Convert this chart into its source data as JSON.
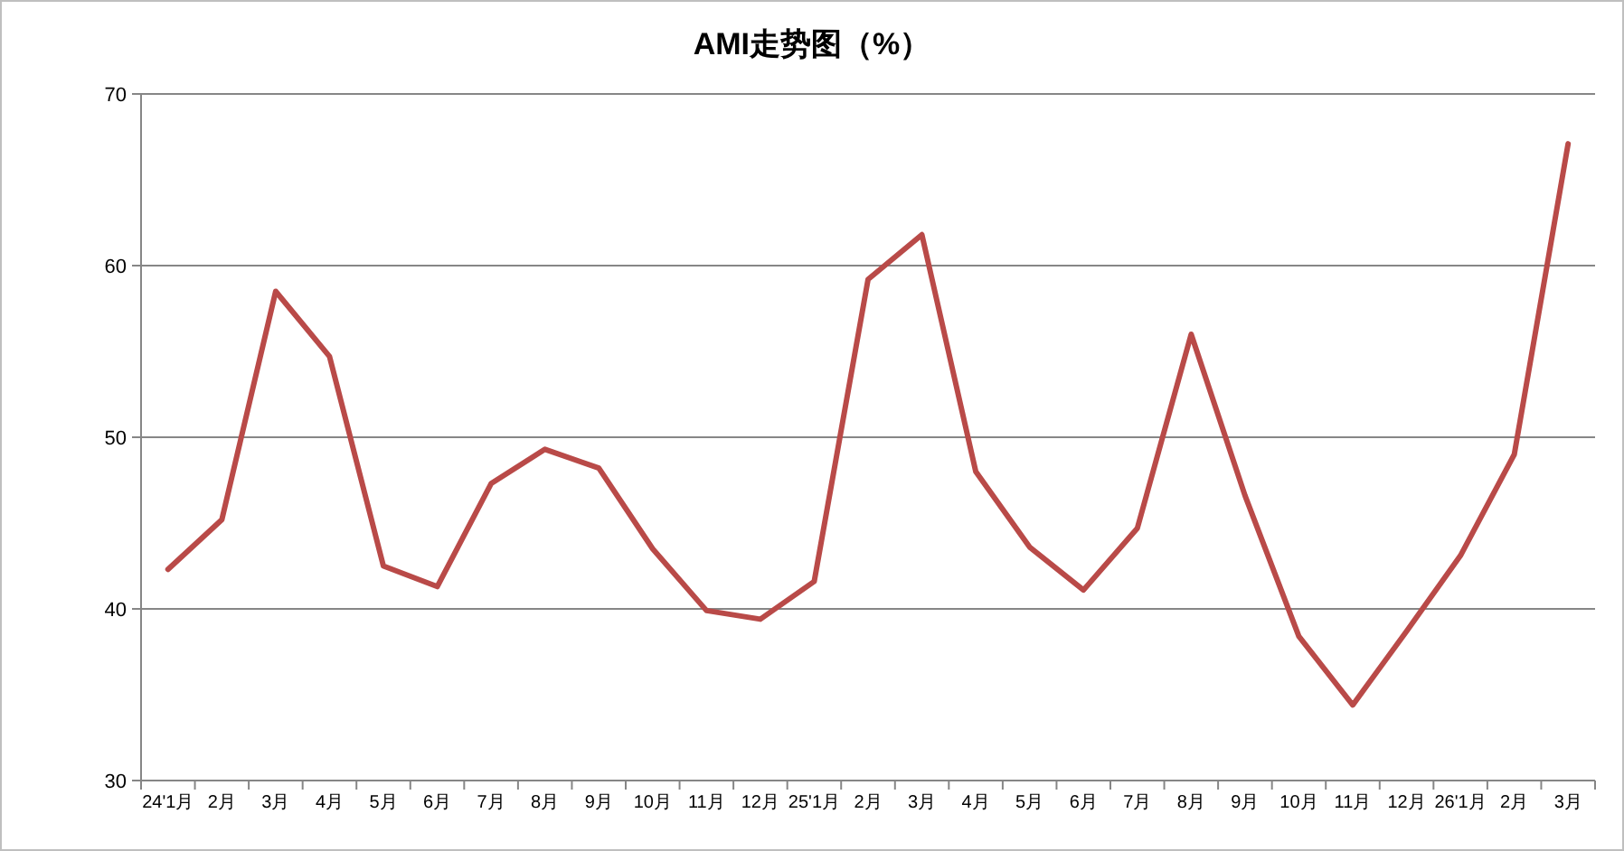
{
  "chart_data": {
    "type": "line",
    "title": "AMI走势图（%）",
    "categories": [
      "24'1月",
      "2月",
      "3月",
      "4月",
      "5月",
      "6月",
      "7月",
      "8月",
      "9月",
      "10月",
      "11月",
      "12月",
      "25'1月",
      "2月",
      "3月",
      "4月",
      "5月",
      "6月",
      "7月",
      "8月",
      "9月",
      "10月",
      "11月",
      "12月",
      "26'1月",
      "2月",
      "3月"
    ],
    "series": [
      {
        "color": "#b94a48",
        "values": [
          42.3,
          45.2,
          58.5,
          54.7,
          42.5,
          41.3,
          47.3,
          49.3,
          48.2,
          43.5,
          39.9,
          39.4,
          41.6,
          59.2,
          61.8,
          48.0,
          43.6,
          41.1,
          44.7,
          56.0,
          46.6,
          38.4,
          34.4,
          38.7,
          43.1,
          49.0,
          67.1
        ]
      }
    ],
    "ylim": [
      30,
      70
    ],
    "yticks": [
      30,
      40,
      50,
      60,
      70
    ],
    "grid": "y",
    "marker": "none",
    "line_style": "solid"
  }
}
